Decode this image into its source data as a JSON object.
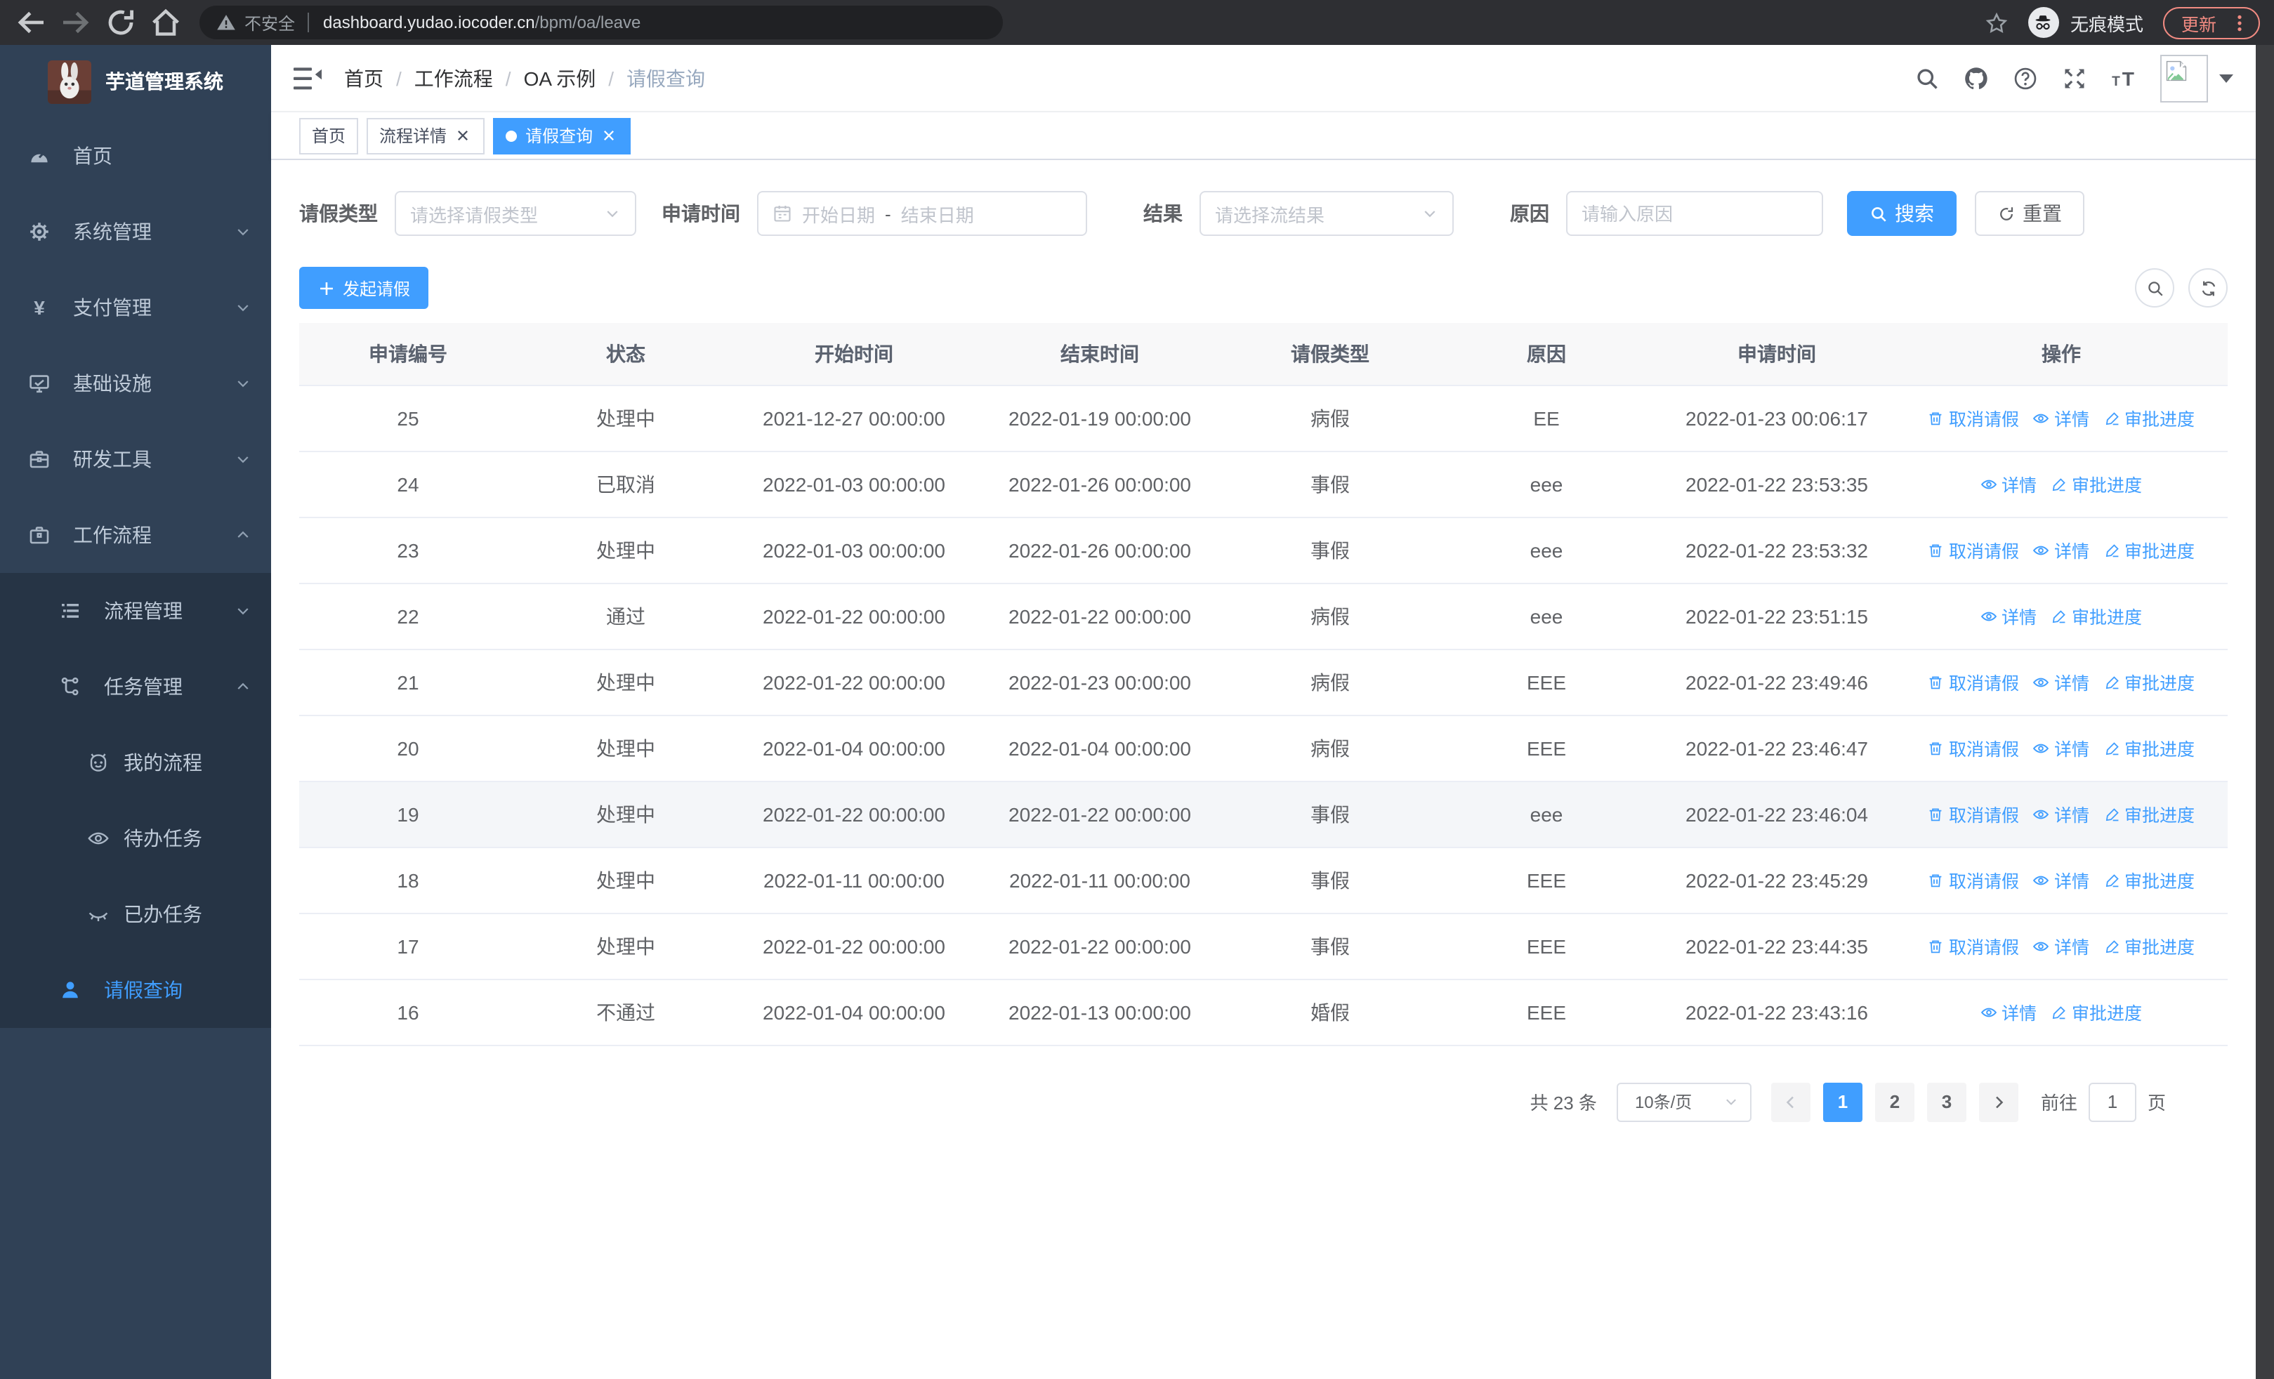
{
  "colors": {
    "primary": "#409eff",
    "link": "#409eff",
    "sidebar_bg": "#304156",
    "submenu_bg": "#263445",
    "update_accent": "#f28b82"
  },
  "browser": {
    "security_label": "不安全",
    "url_host": "dashboard.yudao.iocoder.cn",
    "url_path": "/bpm/oa/leave",
    "incognito_label": "无痕模式",
    "update_label": "更新"
  },
  "sidebar": {
    "title": "芋道管理系统",
    "menu": [
      {
        "name": "home",
        "label": "首页",
        "icon": "dashboard-icon"
      },
      {
        "name": "system",
        "label": "系统管理",
        "icon": "gear-icon",
        "arrow": "down"
      },
      {
        "name": "payment",
        "label": "支付管理",
        "icon": "yen-icon",
        "arrow": "down"
      },
      {
        "name": "infrastructure",
        "label": "基础设施",
        "icon": "monitor-icon",
        "arrow": "down"
      },
      {
        "name": "devtools",
        "label": "研发工具",
        "icon": "toolbox-icon",
        "arrow": "down"
      },
      {
        "name": "workflow",
        "label": "工作流程",
        "icon": "briefcase-icon",
        "arrow": "up",
        "expanded": true
      }
    ],
    "submenu": [
      {
        "name": "process-management",
        "label": "流程管理",
        "icon": "list-icon",
        "indent": 1,
        "arrow": "down"
      },
      {
        "name": "task-management",
        "label": "任务管理",
        "icon": "flow-icon",
        "indent": 1,
        "arrow": "up"
      },
      {
        "name": "my-process",
        "label": "我的流程",
        "icon": "robot-icon",
        "indent": 2
      },
      {
        "name": "todo-tasks",
        "label": "待办任务",
        "icon": "eye-open-icon",
        "indent": 2
      },
      {
        "name": "done-tasks",
        "label": "已办任务",
        "icon": "eye-closed-icon",
        "indent": 2
      },
      {
        "name": "leave-query",
        "label": "请假查询",
        "icon": "user-icon",
        "indent": 1,
        "active": true
      }
    ]
  },
  "header": {
    "breadcrumb_separator": "/",
    "breadcrumb": [
      {
        "label": "首页"
      },
      {
        "label": "工作流程"
      },
      {
        "label": "OA 示例"
      },
      {
        "label": "请假查询",
        "current": true
      }
    ]
  },
  "tabs": [
    {
      "name": "home",
      "label": "首页",
      "closable": false,
      "active": false
    },
    {
      "name": "process-detail",
      "label": "流程详情",
      "closable": true,
      "active": false
    },
    {
      "name": "leave-query",
      "label": "请假查询",
      "closable": true,
      "active": true
    }
  ],
  "filters": {
    "type_label": "请假类型",
    "type_placeholder": "请选择请假类型",
    "time_label": "申请时间",
    "start_placeholder": "开始日期",
    "range_separator": "-",
    "end_placeholder": "结束日期",
    "result_label": "结果",
    "result_placeholder": "请选择流结果",
    "reason_label": "原因",
    "reason_placeholder": "请输入原因",
    "search_label": "搜索",
    "reset_label": "重置"
  },
  "toolbar": {
    "create_label": "发起请假"
  },
  "table": {
    "columns": [
      "申请编号",
      "状态",
      "开始时间",
      "结束时间",
      "请假类型",
      "原因",
      "申请时间",
      "操作"
    ],
    "action_defs": {
      "cancel": {
        "label": "取消请假",
        "icon": "trash-icon"
      },
      "detail": {
        "label": "详情",
        "icon": "eye-icon"
      },
      "progress": {
        "label": "审批进度",
        "icon": "edit-icon"
      }
    },
    "rows": [
      {
        "id": "25",
        "status": "处理中",
        "start": "2021-12-27 00:00:00",
        "end": "2022-01-19 00:00:00",
        "type": "病假",
        "reason": "EE",
        "applied": "2022-01-23 00:06:17",
        "actions": [
          "cancel",
          "detail",
          "progress"
        ]
      },
      {
        "id": "24",
        "status": "已取消",
        "start": "2022-01-03 00:00:00",
        "end": "2022-01-26 00:00:00",
        "type": "事假",
        "reason": "eee",
        "applied": "2022-01-22 23:53:35",
        "actions": [
          "detail",
          "progress"
        ]
      },
      {
        "id": "23",
        "status": "处理中",
        "start": "2022-01-03 00:00:00",
        "end": "2022-01-26 00:00:00",
        "type": "事假",
        "reason": "eee",
        "applied": "2022-01-22 23:53:32",
        "actions": [
          "cancel",
          "detail",
          "progress"
        ]
      },
      {
        "id": "22",
        "status": "通过",
        "start": "2022-01-22 00:00:00",
        "end": "2022-01-22 00:00:00",
        "type": "病假",
        "reason": "eee",
        "applied": "2022-01-22 23:51:15",
        "actions": [
          "detail",
          "progress"
        ]
      },
      {
        "id": "21",
        "status": "处理中",
        "start": "2022-01-22 00:00:00",
        "end": "2022-01-23 00:00:00",
        "type": "病假",
        "reason": "EEE",
        "applied": "2022-01-22 23:49:46",
        "actions": [
          "cancel",
          "detail",
          "progress"
        ]
      },
      {
        "id": "20",
        "status": "处理中",
        "start": "2022-01-04 00:00:00",
        "end": "2022-01-04 00:00:00",
        "type": "病假",
        "reason": "EEE",
        "applied": "2022-01-22 23:46:47",
        "actions": [
          "cancel",
          "detail",
          "progress"
        ]
      },
      {
        "id": "19",
        "status": "处理中",
        "start": "2022-01-22 00:00:00",
        "end": "2022-01-22 00:00:00",
        "type": "事假",
        "reason": "eee",
        "applied": "2022-01-22 23:46:04",
        "actions": [
          "cancel",
          "detail",
          "progress"
        ],
        "highlight": true
      },
      {
        "id": "18",
        "status": "处理中",
        "start": "2022-01-11 00:00:00",
        "end": "2022-01-11 00:00:00",
        "type": "事假",
        "reason": "EEE",
        "applied": "2022-01-22 23:45:29",
        "actions": [
          "cancel",
          "detail",
          "progress"
        ]
      },
      {
        "id": "17",
        "status": "处理中",
        "start": "2022-01-22 00:00:00",
        "end": "2022-01-22 00:00:00",
        "type": "事假",
        "reason": "EEE",
        "applied": "2022-01-22 23:44:35",
        "actions": [
          "cancel",
          "detail",
          "progress"
        ]
      },
      {
        "id": "16",
        "status": "不通过",
        "start": "2022-01-04 00:00:00",
        "end": "2022-01-13 00:00:00",
        "type": "婚假",
        "reason": "EEE",
        "applied": "2022-01-22 23:43:16",
        "actions": [
          "detail",
          "progress"
        ]
      }
    ]
  },
  "pagination": {
    "total_label": "共 23 条",
    "page_size": "10条/页",
    "pages": [
      "1",
      "2",
      "3"
    ],
    "active_page": "1",
    "goto_label": "前往",
    "goto_value": "1",
    "page_unit": "页"
  }
}
